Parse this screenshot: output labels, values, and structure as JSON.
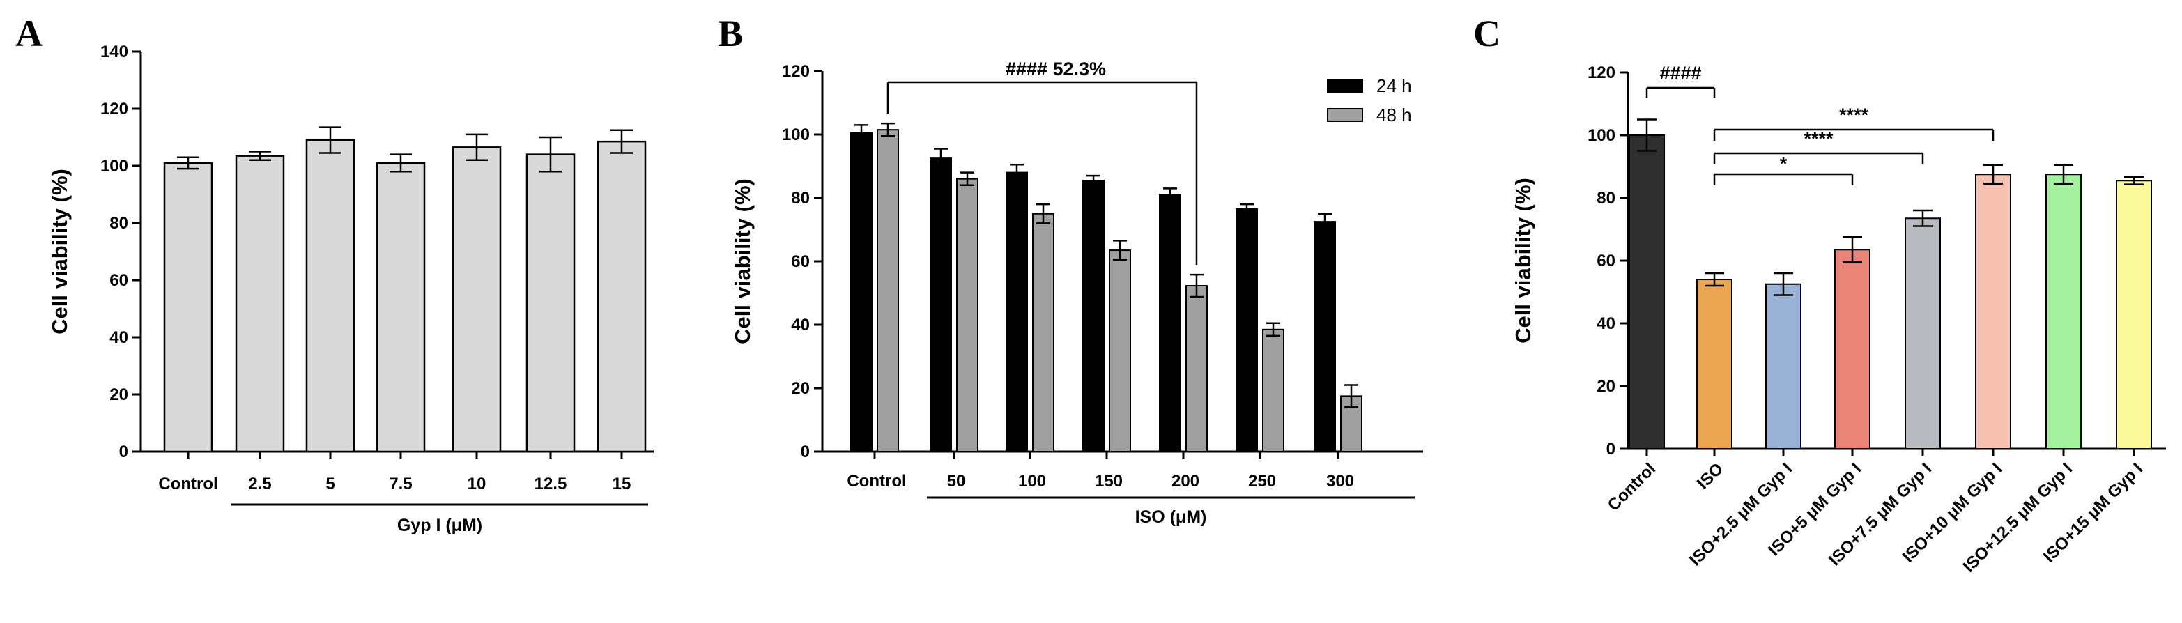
{
  "chart_data": [
    {
      "panel": "A",
      "type": "bar",
      "ylabel": "Cell viability (%)",
      "xlabel": "",
      "ylim": [
        0,
        140
      ],
      "yticks": [
        0,
        20,
        40,
        60,
        80,
        100,
        120,
        140
      ],
      "categories": [
        "Control",
        "2.5",
        "5",
        "7.5",
        "10",
        "12.5",
        "15"
      ],
      "values": [
        101,
        103.5,
        109,
        101,
        106.5,
        104,
        108.5
      ],
      "errors": [
        2,
        1.5,
        4.5,
        3,
        4.5,
        6,
        4
      ],
      "bar_color": "#d9d9d9",
      "group_label": "Gyp I (μM)"
    },
    {
      "panel": "B",
      "type": "bar",
      "ylabel": "Cell viability (%)",
      "xlabel": "",
      "ylim": [
        0,
        120
      ],
      "yticks": [
        0,
        20,
        40,
        60,
        80,
        100,
        120
      ],
      "categories": [
        "Control",
        "50",
        "100",
        "150",
        "200",
        "250",
        "300"
      ],
      "series": [
        {
          "name": "24 h",
          "color": "#000000",
          "values": [
            100.5,
            92.5,
            88,
            85.5,
            81,
            76.5,
            72.5
          ],
          "errors": [
            2.5,
            3,
            2.5,
            1.5,
            2,
            1.5,
            2.5
          ]
        },
        {
          "name": "48 h",
          "color": "#a0a0a0",
          "values": [
            101.5,
            86,
            75,
            63.5,
            52.3,
            38.5,
            17.5
          ],
          "errors": [
            2,
            2,
            3,
            3,
            3.5,
            2,
            3.5
          ]
        }
      ],
      "annotation": "####  52.3%",
      "group_label": "ISO (μM)"
    },
    {
      "panel": "C",
      "type": "bar",
      "ylabel": "Cell viability (%)",
      "xlabel": "",
      "ylim": [
        0,
        120
      ],
      "yticks": [
        0,
        20,
        40,
        60,
        80,
        100,
        120
      ],
      "categories": [
        "Control",
        "ISO",
        "ISO+2.5 μM Gyp I",
        "ISO+5 μM Gyp I",
        "ISO+7.5 μM Gyp I",
        "ISO+10 μM Gyp I",
        "ISO+12.5 μM Gyp I",
        "ISO+15 μM Gyp I"
      ],
      "values": [
        100,
        54,
        52.5,
        63.5,
        73.5,
        87.5,
        87.5,
        85.5
      ],
      "errors": [
        5,
        2,
        3.5,
        4,
        2.5,
        3,
        3,
        1.2
      ],
      "colors": [
        "#2f2f2f",
        "#e9a552",
        "#98b3d6",
        "#e88478",
        "#b8bcc0",
        "#f5c2b2",
        "#a4f2a0",
        "#fafa9a"
      ],
      "significance": [
        {
          "label": "####",
          "from": 0,
          "to": 1
        },
        {
          "label": "*",
          "from": 1,
          "to": 3
        },
        {
          "label": "****",
          "from": 1,
          "to": 4
        },
        {
          "label": "****",
          "from": 1,
          "to": 5
        }
      ]
    }
  ]
}
